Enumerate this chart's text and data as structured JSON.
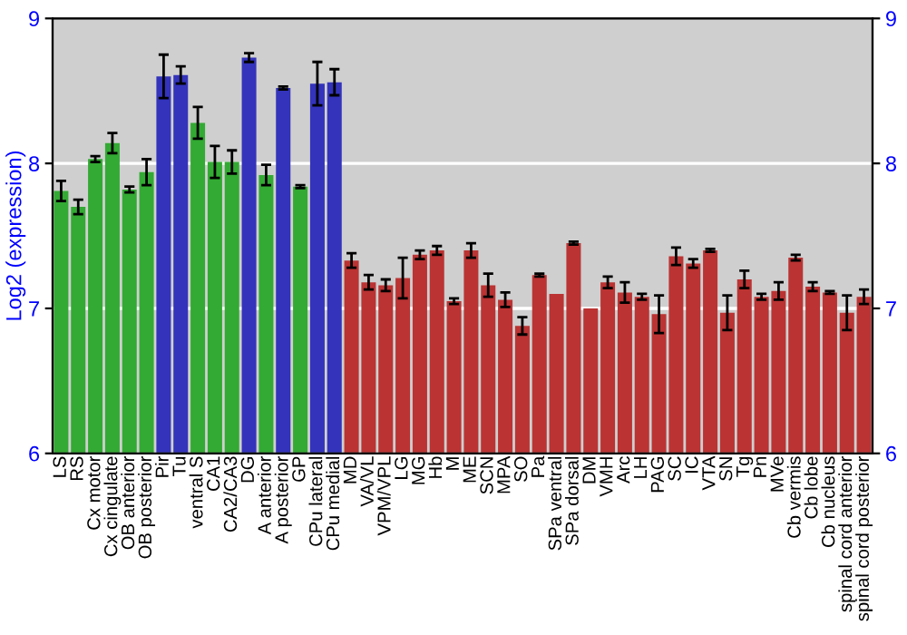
{
  "chart_data": {
    "type": "bar",
    "ylabel": "Log2 (expression)",
    "categories": [
      "LS",
      "RS",
      "Cx motor",
      "Cx cingulate",
      "OB anterior",
      "OB posterior",
      "Pir",
      "Tu",
      "ventral S",
      "CA1",
      "CA2/CA3",
      "DG",
      "A anterior",
      "A posterior",
      "GP",
      "CPu lateral",
      "CPu medial",
      "MD",
      "VA/VL",
      "VPM/VPL",
      "LG",
      "MG",
      "Hb",
      "M",
      "ME",
      "SCN",
      "MPA",
      "SO",
      "Pa",
      "SPa ventral",
      "SPa dorsal",
      "DM",
      "VMH",
      "Arc",
      "LH",
      "PAG",
      "SC",
      "IC",
      "VTA",
      "SN",
      "Tg",
      "Pn",
      "MVe",
      "Cb vermis",
      "Cb lobe",
      "Cb nucleus",
      "spinal cord anterior",
      "spinal cord posterior"
    ],
    "values": [
      7.81,
      7.7,
      8.03,
      8.14,
      7.82,
      7.94,
      8.6,
      8.61,
      8.28,
      8.01,
      8.01,
      8.73,
      7.92,
      8.52,
      7.84,
      8.55,
      8.56,
      7.33,
      7.18,
      7.16,
      7.21,
      7.37,
      7.4,
      7.05,
      7.4,
      7.16,
      7.06,
      6.88,
      7.23,
      7.1,
      7.45,
      7.0,
      7.18,
      7.11,
      7.08,
      6.96,
      7.36,
      7.31,
      7.4,
      6.97,
      7.2,
      7.08,
      7.12,
      7.35,
      7.15,
      7.11,
      6.97,
      7.08
    ],
    "errors": [
      0.07,
      0.05,
      0.02,
      0.07,
      0.02,
      0.09,
      0.15,
      0.06,
      0.11,
      0.11,
      0.08,
      0.03,
      0.07,
      0.01,
      0.01,
      0.15,
      0.09,
      0.05,
      0.05,
      0.04,
      0.14,
      0.03,
      0.03,
      0.02,
      0.05,
      0.08,
      0.05,
      0.06,
      0.01,
      null,
      0.01,
      null,
      0.04,
      0.07,
      0.02,
      0.13,
      0.06,
      0.03,
      0.01,
      0.12,
      0.06,
      0.02,
      0.06,
      0.02,
      0.03,
      0.01,
      0.12,
      0.05
    ],
    "colors": [
      "#33aa33",
      "#33aa33",
      "#33aa33",
      "#33aa33",
      "#33aa33",
      "#33aa33",
      "#3333bb",
      "#3333bb",
      "#33aa33",
      "#33aa33",
      "#33aa33",
      "#3333bb",
      "#33aa33",
      "#3333bb",
      "#33aa33",
      "#3333bb",
      "#3333bb",
      "#bb3333",
      "#bb3333",
      "#bb3333",
      "#bb3333",
      "#bb3333",
      "#bb3333",
      "#bb3333",
      "#bb3333",
      "#bb3333",
      "#bb3333",
      "#bb3333",
      "#bb3333",
      "#bb3333",
      "#bb3333",
      "#bb3333",
      "#bb3333",
      "#bb3333",
      "#bb3333",
      "#bb3333",
      "#bb3333",
      "#bb3333",
      "#bb3333",
      "#bb3333",
      "#bb3333",
      "#bb3333",
      "#bb3333",
      "#bb3333",
      "#bb3333",
      "#bb3333",
      "#bb3333",
      "#bb3333"
    ],
    "ylim": [
      6,
      9
    ],
    "yticks": [
      6,
      7,
      8,
      9
    ],
    "y2lim": [
      6,
      9
    ],
    "y2ticks": [
      6,
      7,
      8,
      9
    ],
    "grid": "y"
  }
}
